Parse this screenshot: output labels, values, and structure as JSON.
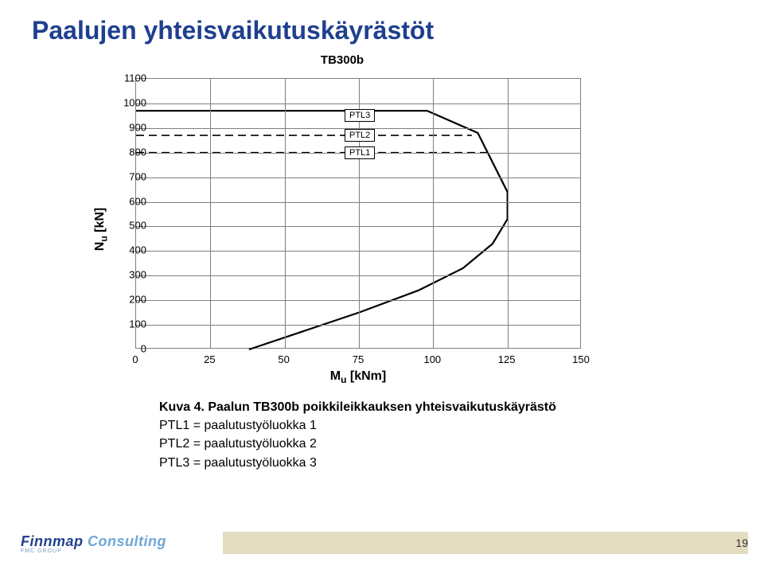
{
  "title": "Paalujen yhteisvaikutuskäyrästöt",
  "chart": {
    "type": "line",
    "title": "TB300b",
    "xlabel_html": "M<span class='sub-u'>u</span> [kNm]",
    "ylabel_html": "N<span class='sub-u'>u</span> [kN]",
    "xlim": [
      0,
      150
    ],
    "xtick_step": 25,
    "ylim": [
      0,
      1100
    ],
    "ytick_step": 100,
    "grid_color": "#7f7f7f",
    "background_color": "#ffffff",
    "line_labels": {
      "ptl3": {
        "text": "PTL3",
        "y": 952
      },
      "ptl2": {
        "text": "PTL2",
        "y": 870
      },
      "ptl1": {
        "text": "PTL1",
        "y": 800
      }
    },
    "envelope": {
      "color": "#000000",
      "width": 2.2,
      "points": [
        [
          0,
          970
        ],
        [
          98,
          970
        ],
        [
          115,
          880
        ],
        [
          125,
          640
        ],
        [
          125,
          530
        ],
        [
          120,
          430
        ],
        [
          110,
          330
        ],
        [
          95,
          240
        ],
        [
          75,
          150
        ],
        [
          38,
          0
        ]
      ]
    },
    "ptl_lines": [
      {
        "y": 870,
        "dash": "10,6",
        "color": "#000",
        "x_to": 113
      },
      {
        "y": 800,
        "dash": "10,6",
        "color": "#000",
        "x_to": 120
      }
    ]
  },
  "caption": {
    "head": "Kuva 4. Paalun TB300b poikkileikkauksen yhteisvaikutuskäyrästö",
    "lines": [
      "PTL1 = paalutustyöluokka 1",
      "PTL2 = paalutustyöluokka 2",
      "PTL3 = paalutustyöluokka 3"
    ]
  },
  "footer": {
    "page": "19",
    "logo_a": "Finnmap ",
    "logo_b": "Consulting",
    "logo_sub": "FMC GROUP"
  }
}
